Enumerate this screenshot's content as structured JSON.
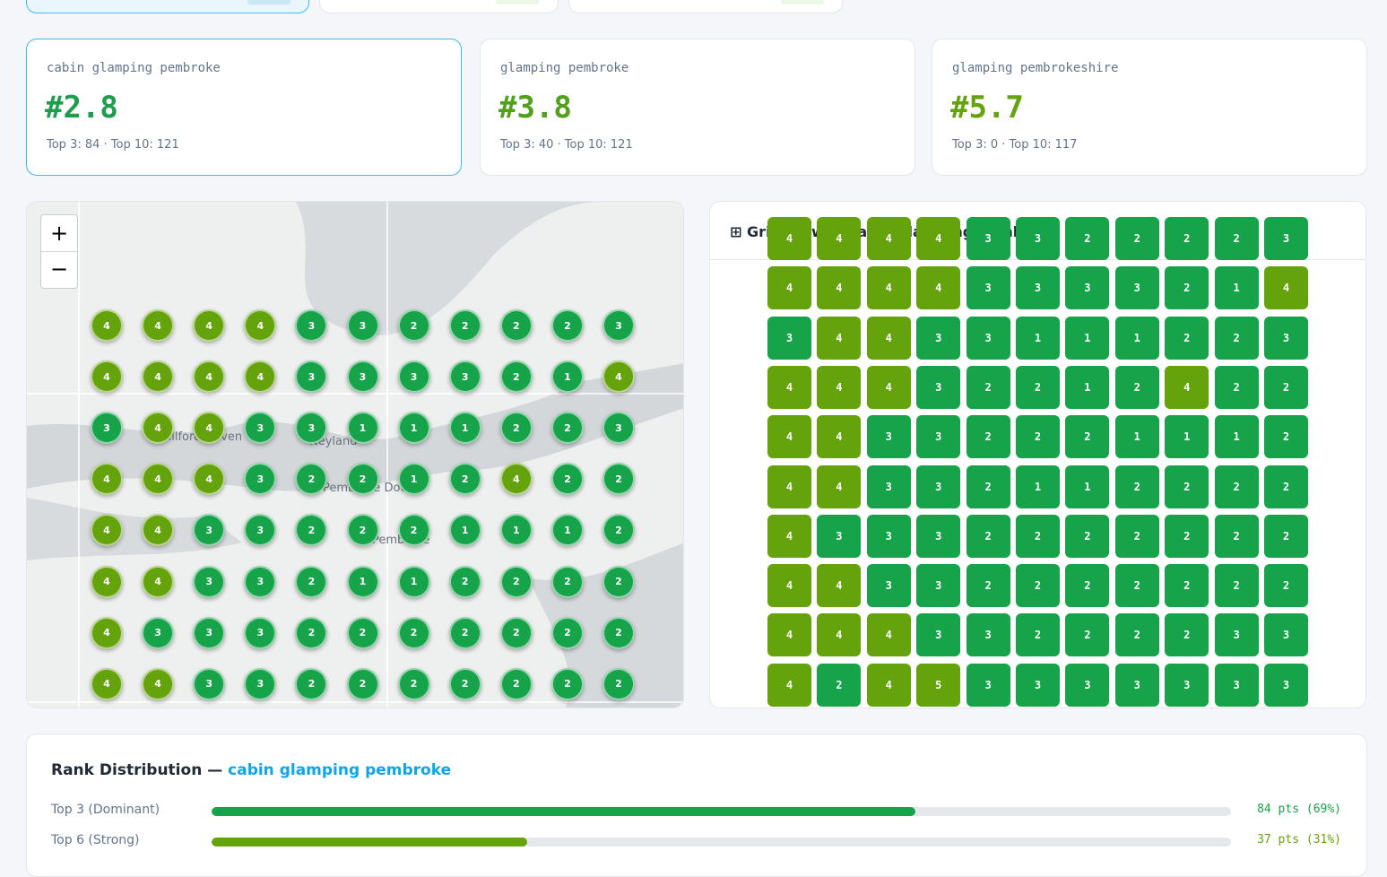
{
  "keyword_cards": [
    {
      "keyword": "cabin glamping pembroke",
      "rank": "#2.8",
      "stats": "Top 3: 84 · Top 10: 121",
      "rank_color": "#1e9e4c",
      "active": true
    },
    {
      "keyword": "glamping pembroke",
      "rank": "#3.8",
      "stats": "Top 3: 40 · Top 10: 121",
      "rank_color": "#52a11c",
      "active": false
    },
    {
      "keyword": "glamping pembrokeshire",
      "rank": "#5.7",
      "stats": "Top 3: 0 · Top 10: 117",
      "rank_color": "#65a30d",
      "active": false
    }
  ],
  "map": {
    "zoom_in": "+",
    "zoom_out": "−",
    "labels": [
      "Milford Haven",
      "Neyland",
      "Pembroke Dock",
      "Pembroke"
    ]
  },
  "grid": {
    "icon": "⊞",
    "title": "Grid View — cabin glamping pembroke",
    "palette": [
      "#16a34a",
      "#16a34a",
      "#16a34a",
      "#65a30d",
      "#65a30d"
    ],
    "rows": [
      [
        4,
        4,
        4,
        4,
        3,
        3,
        2,
        2,
        2,
        2,
        3
      ],
      [
        4,
        4,
        4,
        4,
        3,
        3,
        3,
        3,
        2,
        1,
        4
      ],
      [
        3,
        4,
        4,
        3,
        3,
        1,
        1,
        1,
        2,
        2,
        3
      ],
      [
        4,
        4,
        4,
        3,
        2,
        2,
        1,
        2,
        4,
        2,
        2
      ],
      [
        4,
        4,
        3,
        3,
        2,
        2,
        2,
        1,
        1,
        1,
        2
      ],
      [
        4,
        4,
        3,
        3,
        2,
        1,
        1,
        2,
        2,
        2,
        2
      ],
      [
        4,
        3,
        3,
        3,
        2,
        2,
        2,
        2,
        2,
        2,
        2
      ],
      [
        4,
        4,
        3,
        3,
        2,
        2,
        2,
        2,
        2,
        2,
        2
      ],
      [
        4,
        4,
        4,
        3,
        3,
        2,
        2,
        2,
        2,
        3,
        3
      ],
      [
        4,
        2,
        4,
        5,
        3,
        3,
        3,
        3,
        3,
        3,
        3
      ]
    ]
  },
  "distribution": {
    "title": "Rank Distribution —",
    "keyword": "cabin glamping pembroke",
    "rows": [
      {
        "label": "Top 3 (Dominant)",
        "percent": 69,
        "value_label": "84 pts (69%)",
        "color": "#16a34a"
      },
      {
        "label": "Top 6 (Strong)",
        "percent": 31,
        "value_label": "37 pts (31%)",
        "color": "#65a30d"
      }
    ]
  }
}
